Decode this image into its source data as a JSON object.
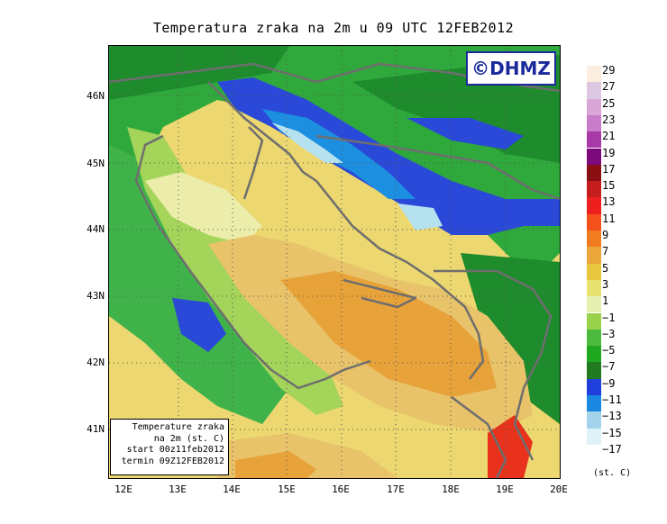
{
  "title": "Temperatura zraka na 2m u 09 UTC 12FEB2012",
  "logo": "©DHMZ",
  "lat_labels": [
    "46N",
    "45N",
    "44N",
    "43N",
    "42N",
    "41N"
  ],
  "lon_labels": [
    "12E",
    "13E",
    "14E",
    "15E",
    "16E",
    "17E",
    "18E",
    "19E",
    "20E"
  ],
  "info_box": {
    "line1": "Temperature zraka",
    "line2": "na 2m (st. C)",
    "line3": "start 00z11feb2012",
    "line4": "termin 09Z12FEB2012"
  },
  "legend": {
    "units": "(st. C)",
    "labels": [
      "29",
      "27",
      "25",
      "23",
      "21",
      "19",
      "17",
      "15",
      "13",
      "11",
      "9",
      "7",
      "5",
      "3",
      "1",
      "−1",
      "−3",
      "−5",
      "−7",
      "−9",
      "−11",
      "−13",
      "−15",
      "−17"
    ],
    "colors": [
      "#fbeee0",
      "#dcc8e0",
      "#d9a6d7",
      "#c97cc7",
      "#a83aa8",
      "#7d0a7d",
      "#8a0f12",
      "#c41d1d",
      "#ee1f1f",
      "#f4511d",
      "#f17c20",
      "#eba73a",
      "#e8c740",
      "#e8e272",
      "#e5efaf",
      "#9ad14a",
      "#4cba3c",
      "#20a920",
      "#1f7a20",
      "#2040dd",
      "#1a88e0",
      "#a3d4ec",
      "#dff2f8",
      "#ffffff"
    ]
  },
  "colors": {
    "warm_orange": "#e8a23a",
    "tan": "#e8c36a",
    "yellow": "#ecd770",
    "pale": "#ecedaa",
    "light_green": "#a4d45a",
    "green": "#3fb34a",
    "dark_green": "#1e8b2c",
    "blue": "#2a49d8",
    "sky": "#1d8fe0",
    "ice": "#b6e2f0",
    "red": "#e8321c",
    "border": "#6e6e6e"
  }
}
